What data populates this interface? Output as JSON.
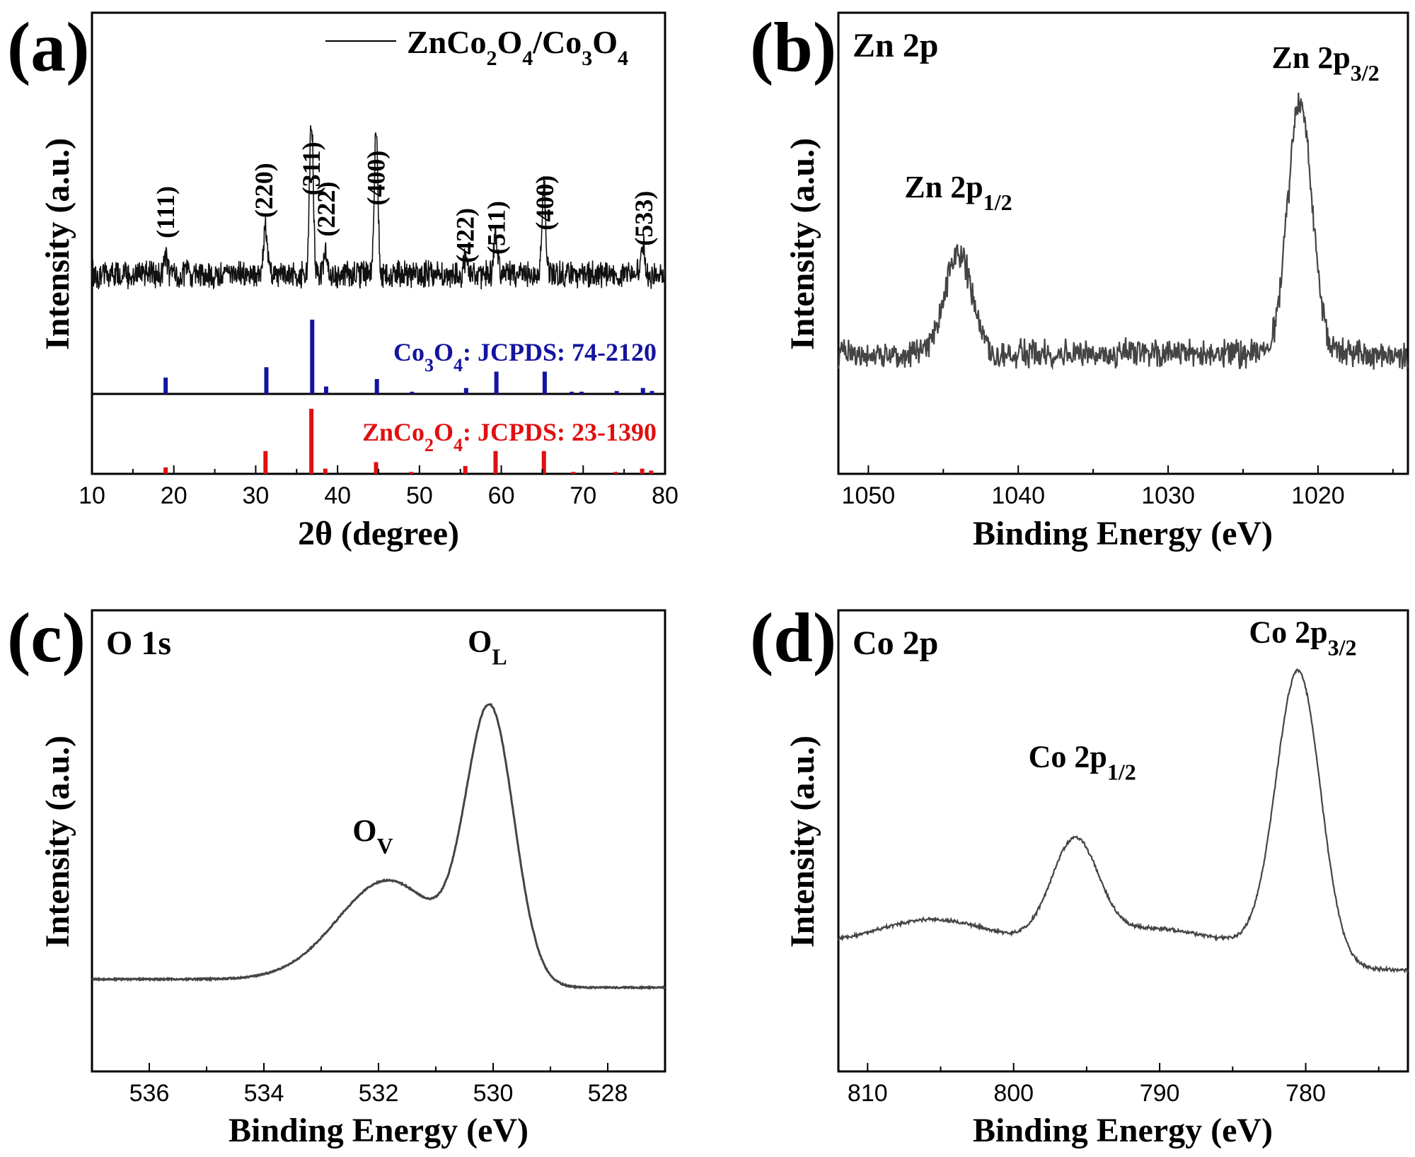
{
  "chart_data": [
    {
      "panel": "(a)",
      "type": "line",
      "title": "",
      "xlabel": "2θ (degree)",
      "ylabel": "Intensity (a.u.)",
      "xlim": [
        10,
        80
      ],
      "xticks": [
        "10",
        "20",
        "30",
        "40",
        "50",
        "60",
        "70",
        "80"
      ],
      "legend": {
        "label_html": "ZnCo<tspan baseline-shift='sub' font-size='30'>2</tspan>O<tspan baseline-shift='sub' font-size='30'>4</tspan>/Co<tspan baseline-shift='sub' font-size='30'>3</tspan>O<tspan baseline-shift='sub' font-size='30'>4</tspan>",
        "label": "ZnCo2O4/Co3O4"
      },
      "xrd_peaks": [
        {
          "two_theta": 19.0,
          "height": 0.12
        },
        {
          "two_theta": 31.2,
          "height": 0.3
        },
        {
          "two_theta": 36.8,
          "height": 1.0
        },
        {
          "two_theta": 38.5,
          "height": 0.15
        },
        {
          "two_theta": 44.7,
          "height": 0.9
        },
        {
          "two_theta": 55.6,
          "height": 0.1
        },
        {
          "two_theta": 59.3,
          "height": 0.25
        },
        {
          "two_theta": 65.2,
          "height": 0.56
        },
        {
          "two_theta": 77.3,
          "height": 0.2
        }
      ],
      "hkl_labels": [
        {
          "text": "(111)",
          "x": 19.0,
          "level": 0.0
        },
        {
          "text": "(220)",
          "x": 31.0,
          "level": 0.14
        },
        {
          "text": "(311)",
          "x": 36.8,
          "level": 0.28
        },
        {
          "text": "(222)",
          "x": 38.6,
          "level": 0.02
        },
        {
          "text": "(400)",
          "x": 44.7,
          "level": 0.22
        },
        {
          "text": "(422)",
          "x": 55.6,
          "level": -0.15
        },
        {
          "text": "(511)",
          "x": 59.4,
          "level": -0.1
        },
        {
          "text": "(400)",
          "x": 65.3,
          "level": 0.06
        },
        {
          "text": "(533)",
          "x": 77.4,
          "level": -0.04
        }
      ],
      "reference_patterns": [
        {
          "name": "Co3O4: JCPDS: 74-2120",
          "label_html": "Co<tspan baseline-shift='sub' font-size='26'>3</tspan>O<tspan baseline-shift='sub' font-size='26'>4</tspan>: JCPDS: 74-2120",
          "color": "#1414a0",
          "lines": [
            [
              19.0,
              0.22
            ],
            [
              31.3,
              0.36
            ],
            [
              36.9,
              1.0
            ],
            [
              38.6,
              0.1
            ],
            [
              44.8,
              0.2
            ],
            [
              49.1,
              0.03
            ],
            [
              55.7,
              0.08
            ],
            [
              59.4,
              0.3
            ],
            [
              65.3,
              0.3
            ],
            [
              68.6,
              0.03
            ],
            [
              69.8,
              0.03
            ],
            [
              74.1,
              0.04
            ],
            [
              77.3,
              0.08
            ],
            [
              78.4,
              0.04
            ]
          ]
        },
        {
          "name": "ZnCo2O4: JCPDS: 23-1390",
          "label_html": "ZnCo<tspan baseline-shift='sub' font-size='26'>2</tspan>O<tspan baseline-shift='sub' font-size='26'>4</tspan>: JCPDS: 23-1390",
          "color": "#e01010",
          "lines": [
            [
              19.0,
              0.1
            ],
            [
              31.2,
              0.35
            ],
            [
              36.8,
              1.0
            ],
            [
              38.5,
              0.08
            ],
            [
              44.7,
              0.18
            ],
            [
              49.0,
              0.03
            ],
            [
              55.6,
              0.12
            ],
            [
              59.3,
              0.35
            ],
            [
              65.2,
              0.35
            ],
            [
              68.8,
              0.03
            ],
            [
              74.0,
              0.03
            ],
            [
              77.2,
              0.08
            ],
            [
              78.3,
              0.05
            ]
          ]
        }
      ]
    },
    {
      "panel": "(b)",
      "type": "line",
      "title": "Zn 2p",
      "xlabel": "Binding Energy (eV)",
      "ylabel": "Intensity (a.u.)",
      "xlim": [
        1052,
        1014
      ],
      "xticks": [
        "1050",
        "1040",
        "1030",
        "1020"
      ],
      "series": [
        {
          "name": "Zn 2p",
          "baseline": 0.26,
          "noise": 0.035,
          "peaks": [
            {
              "center": 1044.0,
              "height": 0.22,
              "width": 0.9
            },
            {
              "center": 1021.2,
              "height": 0.55,
              "width": 0.8
            }
          ]
        }
      ],
      "annotations": [
        {
          "text_html": "Zn 2p<tspan baseline-shift='sub' font-size='32'>1/2</tspan>",
          "text": "Zn 2p1/2",
          "x": 1044.0,
          "y": 0.6
        },
        {
          "text_html": "Zn 2p<tspan baseline-shift='sub' font-size='32'>3/2</tspan>",
          "text": "Zn 2p3/2",
          "x": 1019.5,
          "y": 0.88
        }
      ]
    },
    {
      "panel": "(c)",
      "type": "line",
      "title": "O 1s",
      "xlabel": "Binding Energy (eV)",
      "ylabel": "Intensity (a.u.)",
      "xlim": [
        537,
        527
      ],
      "xticks": [
        "536",
        "534",
        "532",
        "530",
        "528"
      ],
      "series": [
        {
          "name": "O 1s",
          "baseline": 0.2,
          "peaks": [
            {
              "center": 531.8,
              "height": 0.22,
              "width": 0.9
            },
            {
              "center": 530.05,
              "height": 0.58,
              "width": 0.42
            }
          ]
        }
      ],
      "annotations": [
        {
          "text_html": "O<tspan baseline-shift='sub' font-size='32'>V</tspan>",
          "text": "OV",
          "x": 532.1,
          "y": 0.5
        },
        {
          "text_html": "O<tspan baseline-shift='sub' font-size='32'>L</tspan>",
          "text": "OL",
          "x": 530.1,
          "y": 0.91
        }
      ]
    },
    {
      "panel": "(d)",
      "type": "line",
      "title": "Co 2p",
      "xlabel": "Binding Energy (eV)",
      "ylabel": "Intensity (a.u.)",
      "xlim": [
        812,
        773
      ],
      "xticks": [
        "810",
        "800",
        "790",
        "780"
      ],
      "series": [
        {
          "name": "Co 2p",
          "baseline": 0.28,
          "peaks": [
            {
              "center": 805.5,
              "height": 0.05,
              "width": 3.5
            },
            {
              "center": 795.8,
              "height": 0.22,
              "width": 1.6
            },
            {
              "center": 790.5,
              "height": 0.03,
              "width": 3.0
            },
            {
              "center": 780.5,
              "height": 0.6,
              "width": 1.5
            }
          ]
        }
      ],
      "annotations": [
        {
          "text_html": "Co  2p<tspan baseline-shift='sub' font-size='32'>1/2</tspan>",
          "text": "Co  2p1/2",
          "x": 795.3,
          "y": 0.66
        },
        {
          "text_html": "Co  2p<tspan baseline-shift='sub' font-size='32'>3/2</tspan>",
          "text": "Co  2p3/2",
          "x": 780.2,
          "y": 0.93
        }
      ]
    }
  ]
}
